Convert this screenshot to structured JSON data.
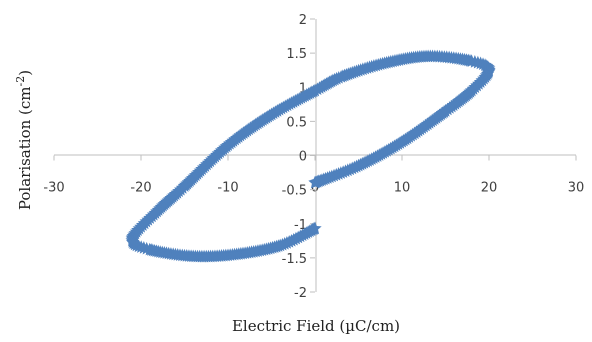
{
  "chart_data": {
    "type": "scatter",
    "title": "",
    "xlabel": "Electric Field (µC/cm)",
    "ylabel_main": "Polarisation (cm",
    "ylabel_sup": "-2",
    "ylabel_end": ")",
    "xlim": [
      -30,
      30
    ],
    "ylim": [
      -2,
      2
    ],
    "x_ticks": [
      "-30",
      "-20",
      "-10",
      "0",
      "10",
      "20",
      "30"
    ],
    "y_ticks": [
      "2",
      "1.5",
      "1",
      "0.5",
      "0",
      "-0.5",
      "-1",
      "-1.5",
      "-2"
    ],
    "legend": "none",
    "grid": false,
    "marker_color": "#4f81bd",
    "series": [
      {
        "points": [
          [
            0,
            -0.4
          ],
          [
            5,
            -0.15
          ],
          [
            10,
            0.2
          ],
          [
            15,
            0.65
          ],
          [
            18,
            0.95
          ],
          [
            20,
            1.25
          ],
          [
            18,
            1.38
          ],
          [
            13,
            1.45
          ],
          [
            8,
            1.35
          ],
          [
            3,
            1.15
          ],
          [
            0,
            0.95
          ],
          [
            -5,
            0.6
          ],
          [
            -10,
            0.15
          ],
          [
            -15,
            -0.45
          ],
          [
            -18,
            -0.8
          ],
          [
            -21,
            -1.22
          ],
          [
            -19,
            -1.38
          ],
          [
            -14,
            -1.48
          ],
          [
            -9,
            -1.45
          ],
          [
            -4,
            -1.32
          ],
          [
            0,
            -1.07
          ]
        ]
      }
    ]
  }
}
